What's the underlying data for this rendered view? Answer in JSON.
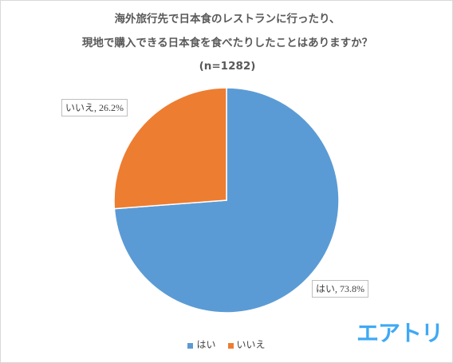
{
  "title": {
    "line1": "海外旅行先で日本食のレストランに行ったり、",
    "line2": "現地で購入できる日本食を食べたりしたことはありますか？",
    "line3": "(n=1282)"
  },
  "chart_data": {
    "type": "pie",
    "categories": [
      "はい",
      "いいえ"
    ],
    "values": [
      73.8,
      26.2
    ],
    "unit": "%",
    "labels": [
      "はい, 73.8%",
      "いいえ, 26.2%"
    ],
    "colors": [
      "#5b9bd5",
      "#ed7d31"
    ],
    "start_angle_deg": 0,
    "direction": "clockwise",
    "legend_position": "bottom"
  },
  "legend": {
    "items": [
      {
        "label": "はい",
        "color": "#5b9bd5"
      },
      {
        "label": "いいえ",
        "color": "#ed7d31"
      }
    ]
  },
  "logo": {
    "text": "エアトリ",
    "color": "#3fa9f5"
  }
}
